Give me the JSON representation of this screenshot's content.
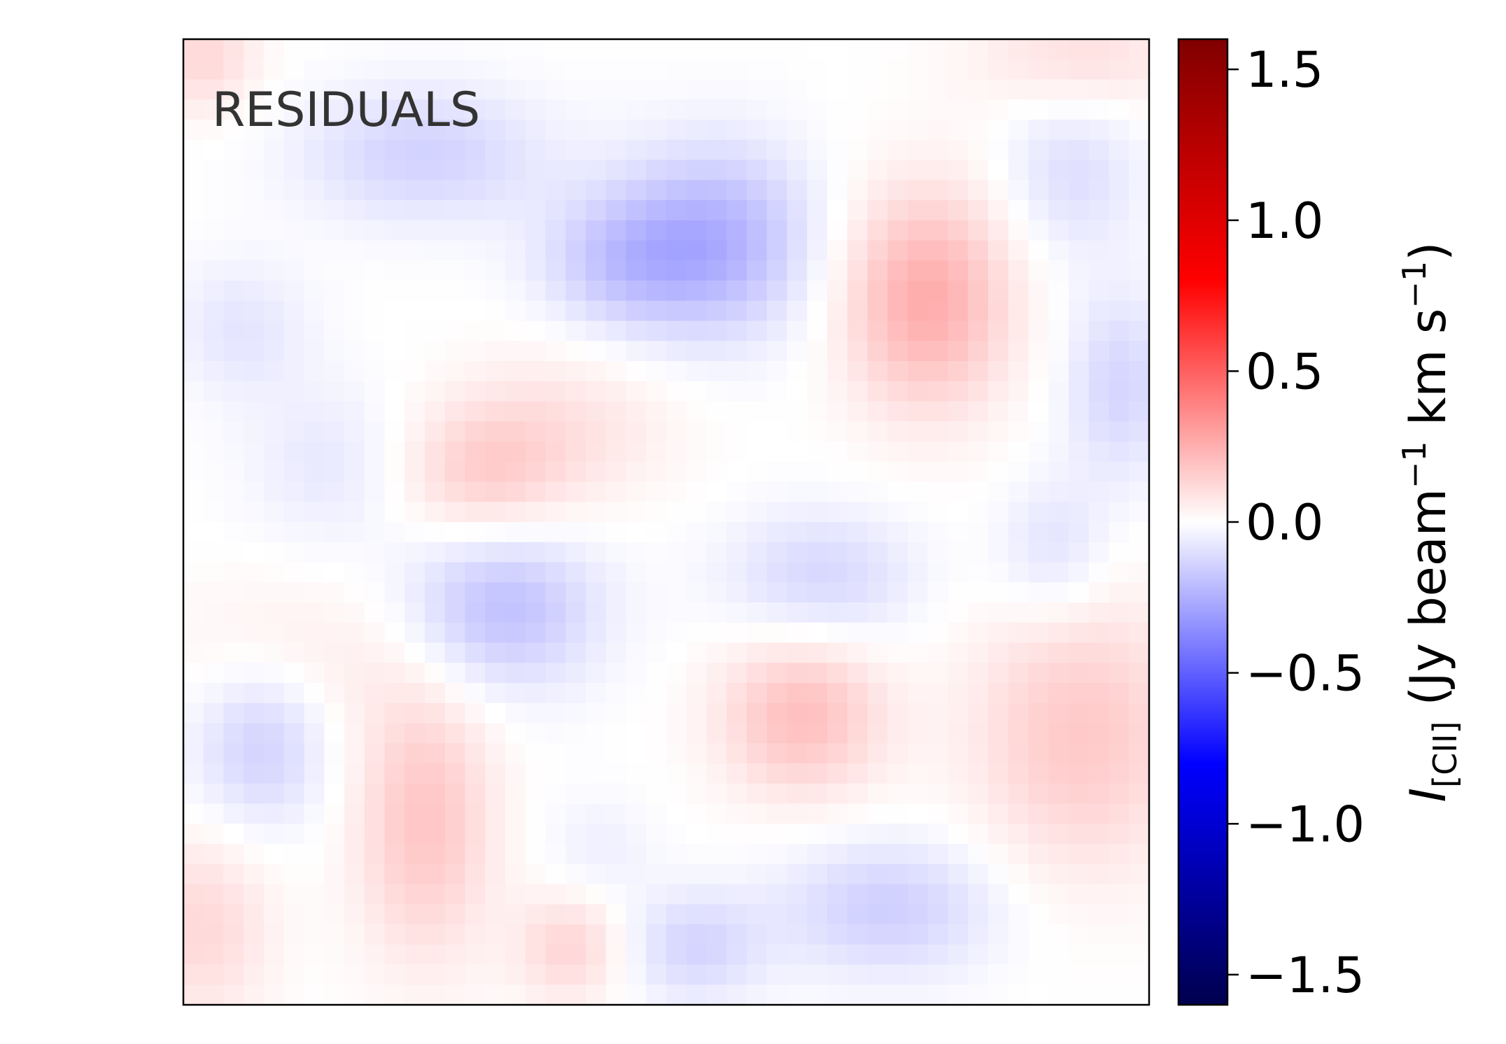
{
  "chart_data": {
    "type": "heatmap",
    "annotation": "RESIDUALS",
    "colormap": "seismic",
    "colormap_stops": [
      "#00004d",
      "#0000ff",
      "#ffffff",
      "#ff0000",
      "#800000"
    ],
    "vmin": -1.6,
    "vmax": 1.6,
    "colorbar": {
      "ticks": [
        -1.5,
        -1.0,
        -0.5,
        0.0,
        0.5,
        1.0,
        1.5
      ],
      "tick_labels": [
        "−1.5",
        "−1.0",
        "−0.5",
        "0.0",
        "0.5",
        "1.0",
        "1.5"
      ],
      "label_symbol": "I",
      "label_subscript": "[CII]",
      "label_units_open": "(Jy beam",
      "label_exp1": "−1",
      "label_km": "km s",
      "label_exp2": "−1",
      "label_close": ")"
    },
    "grid_size": [
      48,
      48
    ],
    "residual_blobs": [
      {
        "x": 0.25,
        "y": 0.12,
        "sx": 0.09,
        "sy": 0.05,
        "amp": -0.14
      },
      {
        "x": 0.55,
        "y": 0.21,
        "sx": 0.07,
        "sy": 0.07,
        "amp": -0.24
      },
      {
        "x": 0.45,
        "y": 0.23,
        "sx": 0.06,
        "sy": 0.05,
        "amp": -0.15
      },
      {
        "x": 0.77,
        "y": 0.27,
        "sx": 0.06,
        "sy": 0.08,
        "amp": 0.26
      },
      {
        "x": 0.92,
        "y": 0.14,
        "sx": 0.05,
        "sy": 0.06,
        "amp": -0.1
      },
      {
        "x": 0.06,
        "y": 0.3,
        "sx": 0.05,
        "sy": 0.05,
        "amp": -0.08
      },
      {
        "x": 0.15,
        "y": 0.44,
        "sx": 0.06,
        "sy": 0.06,
        "amp": -0.07
      },
      {
        "x": 0.31,
        "y": 0.45,
        "sx": 0.06,
        "sy": 0.05,
        "amp": 0.14
      },
      {
        "x": 0.4,
        "y": 0.4,
        "sx": 0.08,
        "sy": 0.06,
        "amp": 0.08
      },
      {
        "x": 0.97,
        "y": 0.36,
        "sx": 0.04,
        "sy": 0.07,
        "amp": -0.13
      },
      {
        "x": 0.9,
        "y": 0.53,
        "sx": 0.04,
        "sy": 0.05,
        "amp": -0.1
      },
      {
        "x": 0.66,
        "y": 0.56,
        "sx": 0.07,
        "sy": 0.05,
        "amp": -0.13
      },
      {
        "x": 0.33,
        "y": 0.59,
        "sx": 0.07,
        "sy": 0.06,
        "amp": -0.2
      },
      {
        "x": 0.08,
        "y": 0.73,
        "sx": 0.05,
        "sy": 0.06,
        "amp": -0.15
      },
      {
        "x": 0.64,
        "y": 0.7,
        "sx": 0.06,
        "sy": 0.06,
        "amp": 0.2
      },
      {
        "x": 0.93,
        "y": 0.72,
        "sx": 0.08,
        "sy": 0.1,
        "amp": 0.17
      },
      {
        "x": 0.25,
        "y": 0.81,
        "sx": 0.05,
        "sy": 0.1,
        "amp": 0.18
      },
      {
        "x": 0.12,
        "y": 0.64,
        "sx": 0.1,
        "sy": 0.06,
        "amp": 0.06
      },
      {
        "x": 0.73,
        "y": 0.9,
        "sx": 0.08,
        "sy": 0.05,
        "amp": -0.15
      },
      {
        "x": 0.53,
        "y": 0.94,
        "sx": 0.05,
        "sy": 0.04,
        "amp": -0.13
      },
      {
        "x": 0.4,
        "y": 0.94,
        "sx": 0.04,
        "sy": 0.04,
        "amp": 0.13
      },
      {
        "x": 0.02,
        "y": 0.92,
        "sx": 0.05,
        "sy": 0.07,
        "amp": 0.12
      },
      {
        "x": 0.93,
        "y": 0.02,
        "sx": 0.08,
        "sy": 0.04,
        "amp": 0.1
      },
      {
        "x": 0.02,
        "y": 0.02,
        "sx": 0.04,
        "sy": 0.04,
        "amp": 0.12
      },
      {
        "x": 0.43,
        "y": 0.84,
        "sx": 0.04,
        "sy": 0.04,
        "amp": -0.05
      }
    ]
  }
}
